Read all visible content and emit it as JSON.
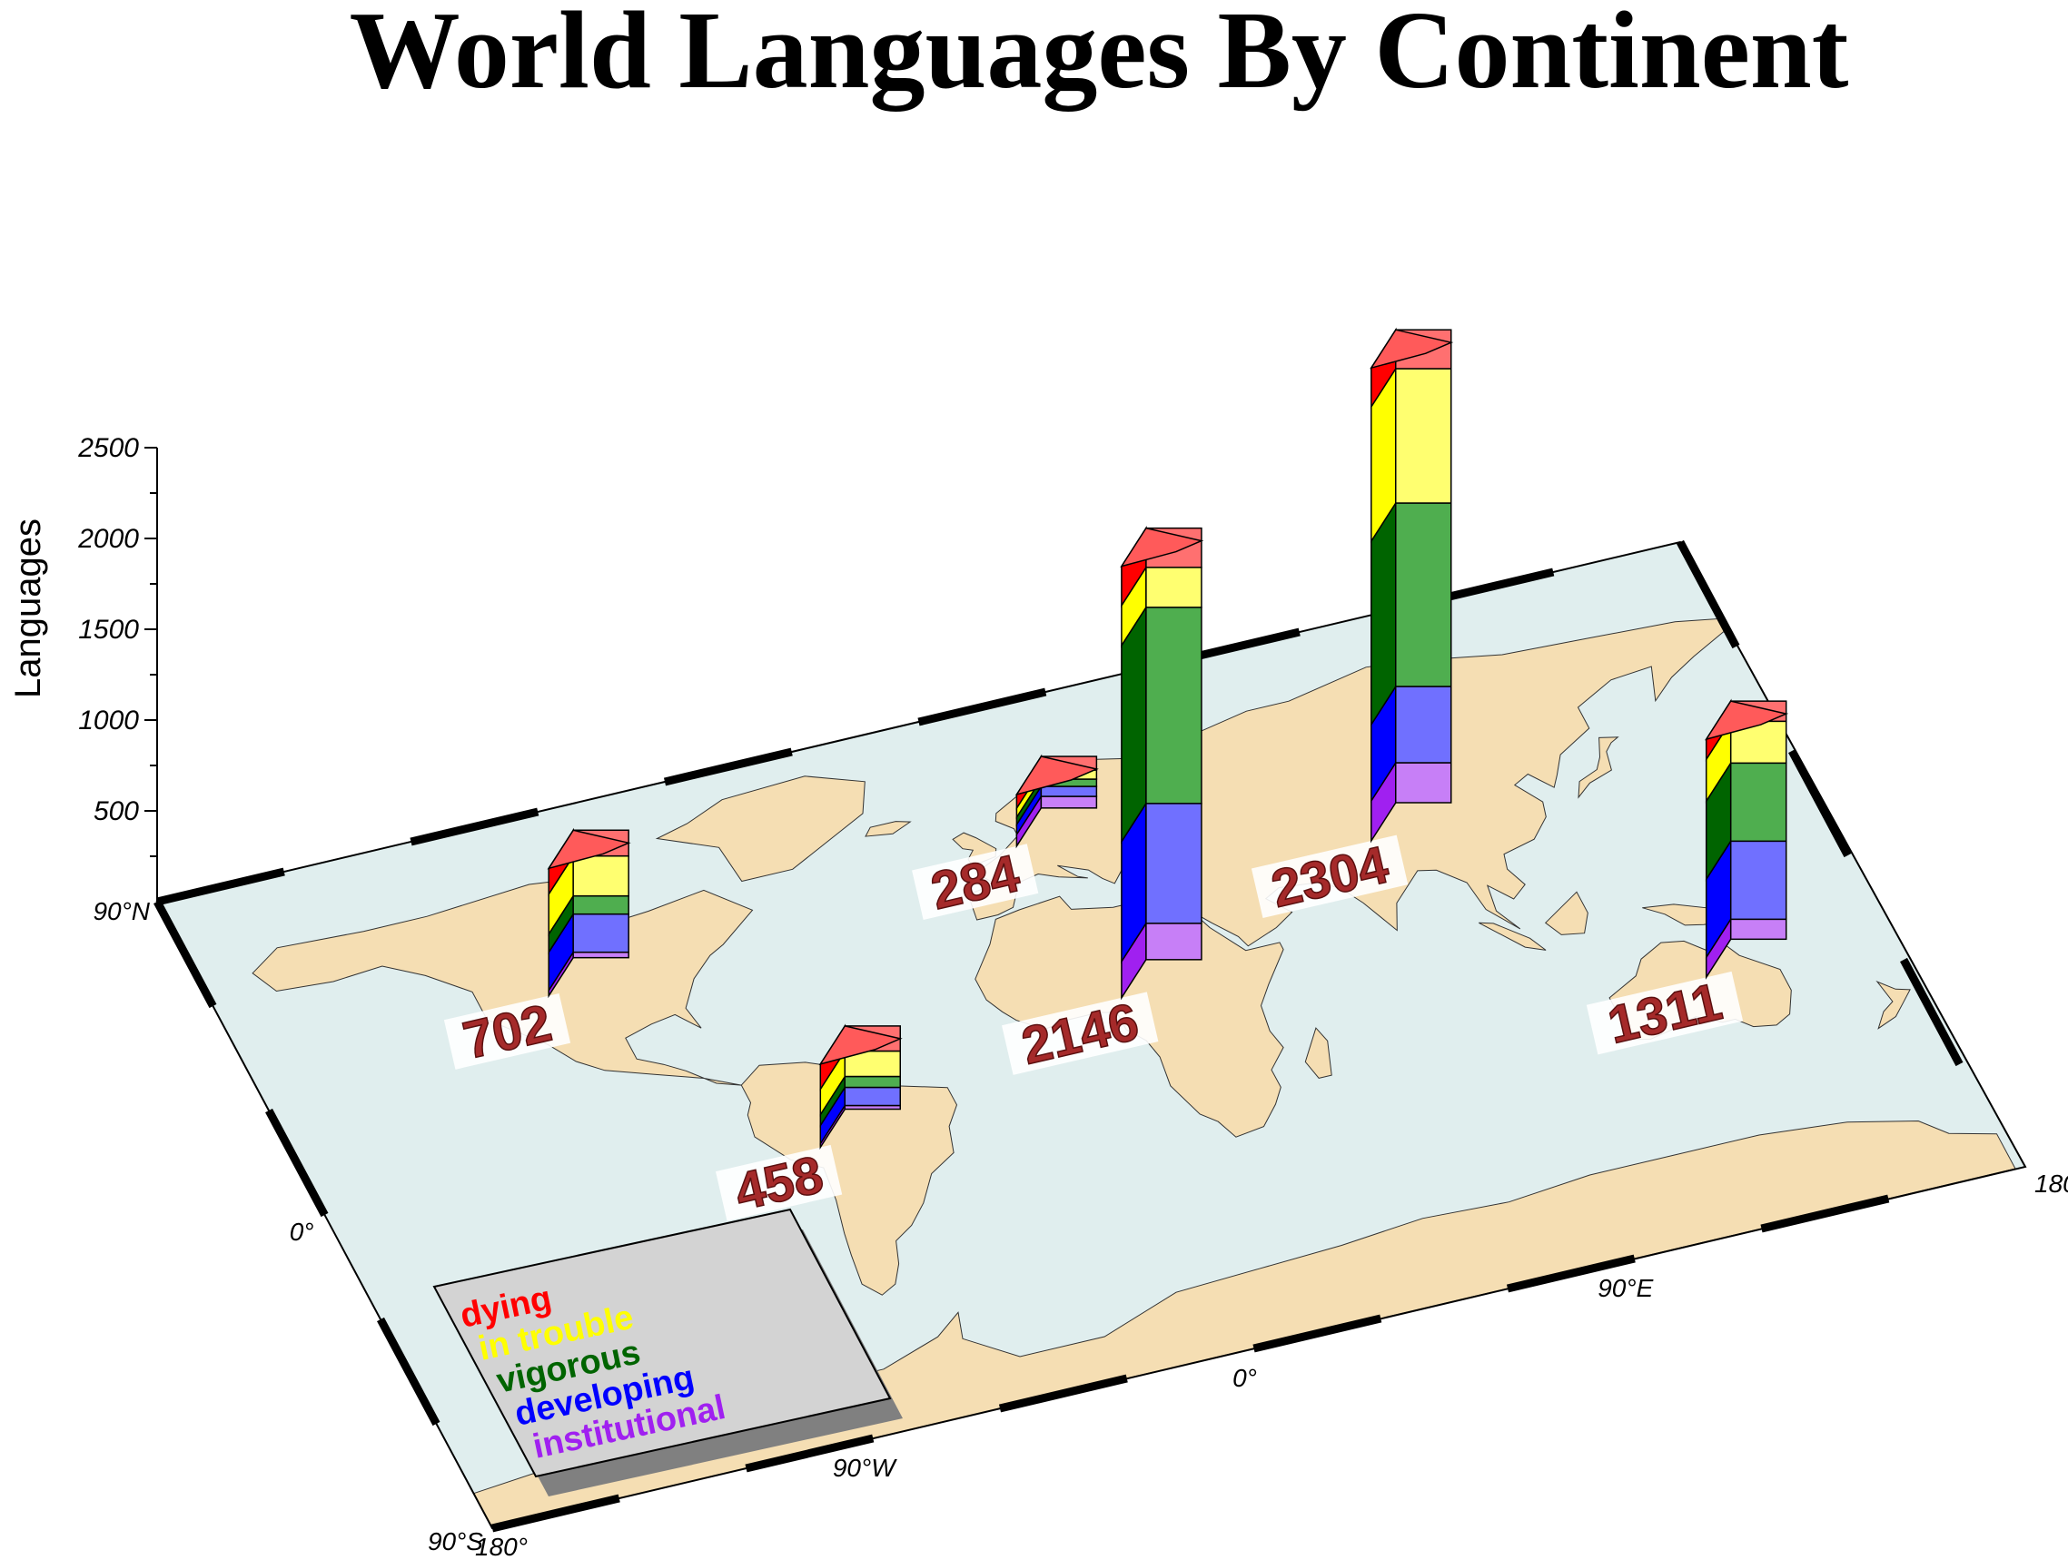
{
  "title": "World Languages By Continent",
  "chart_data": {
    "type": "bar",
    "subtype": "3d-stacked-bars-on-map",
    "title": "World Languages By Continent",
    "ylabel": "Languages",
    "ylim": [
      0,
      2500
    ],
    "yticks": [
      "500",
      "1000",
      "1500",
      "2000",
      "2500"
    ],
    "map_labels": {
      "lat_top": "90°N",
      "lat_mid": "0°",
      "lat_bottom": "90°S",
      "lon_left": "180°",
      "lon_w": "90°W",
      "lon_mid": "0°",
      "lon_e": "90°E",
      "lon_right": "180°"
    },
    "categories_order": [
      "institutional",
      "developing",
      "vigorous",
      "in trouble",
      "dying"
    ],
    "bars": [
      {
        "total": "702",
        "lon": -100,
        "lat": 40,
        "segments": [
          30,
          210,
          100,
          220,
          142
        ]
      },
      {
        "total": "458",
        "lon": -60,
        "lat": -15,
        "segments": [
          20,
          100,
          60,
          140,
          138
        ]
      },
      {
        "total": "284",
        "lon": 15,
        "lat": 50,
        "segments": [
          64,
          55,
          40,
          50,
          75
        ]
      },
      {
        "total": "2146",
        "lon": 20,
        "lat": 5,
        "segments": [
          200,
          660,
          1080,
          220,
          216
        ]
      },
      {
        "total": "2304",
        "lon": 90,
        "lat": 30,
        "segments": [
          220,
          420,
          1010,
          740,
          214
        ]
      },
      {
        "total": "1311",
        "lon": 145,
        "lat": -25,
        "segments": [
          110,
          430,
          430,
          230,
          111
        ]
      }
    ],
    "legend": [
      {
        "label": "dying",
        "color": "#ff0000",
        "front": "#ff7070",
        "top": "#ff5a5a"
      },
      {
        "label": "in trouble",
        "color": "#ffff00",
        "front": "#ffff70",
        "top": "#ffff40"
      },
      {
        "label": "vigorous",
        "color": "#006400",
        "front": "#4fae4f",
        "top": "#3c9a3c"
      },
      {
        "label": "developing",
        "color": "#0000ff",
        "front": "#7070ff",
        "top": "#5a5aff"
      },
      {
        "label": "institutional",
        "color": "#a020f0",
        "front": "#c77ff7",
        "top": "#b860f0"
      }
    ],
    "colors": {
      "ocean": "#e0eeee",
      "land": "#f5deb3",
      "legend_box": "#d3d3d3",
      "legend_shadow": "#808080",
      "total_label_bg": "#ffffff"
    }
  }
}
